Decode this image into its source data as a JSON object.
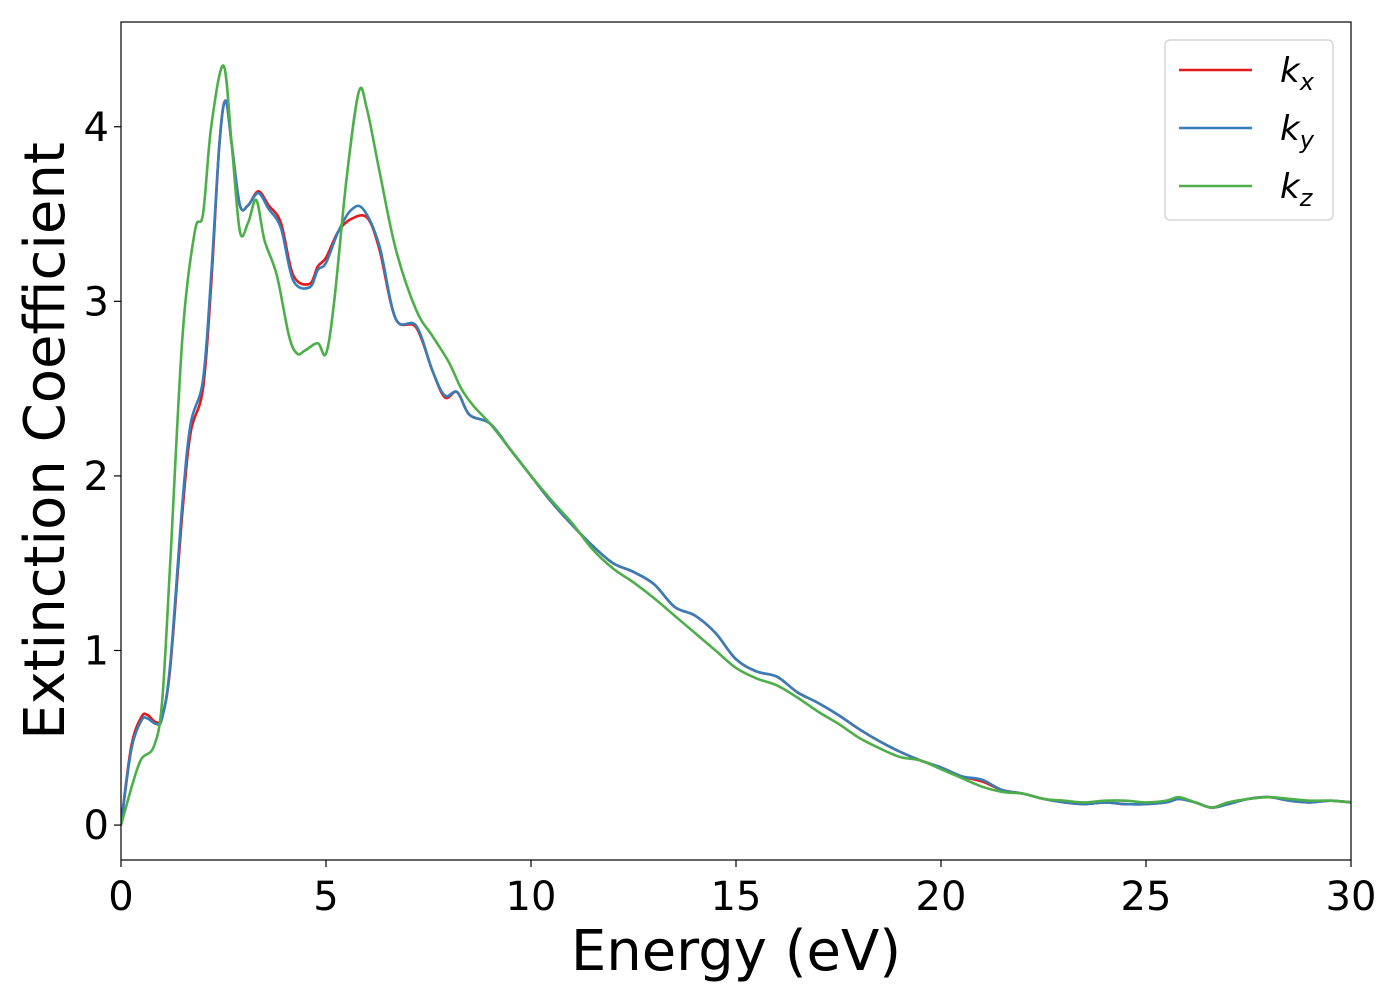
{
  "chart_data": {
    "type": "line",
    "xlabel": "Energy (eV)",
    "ylabel": "Extinction Coefficient",
    "xlim": [
      0,
      30
    ],
    "ylim": [
      -0.2,
      4.6
    ],
    "xticks": [
      0,
      5,
      10,
      15,
      20,
      25,
      30
    ],
    "xtick_labels": [
      "0",
      "5",
      "10",
      "15",
      "20",
      "25",
      "30"
    ],
    "yticks": [
      0,
      1,
      2,
      3,
      4
    ],
    "ytick_labels": [
      "0",
      "1",
      "2",
      "3",
      "4"
    ],
    "grid": false,
    "legend_position": "top-right",
    "series": [
      {
        "name": "k_x",
        "legend_main": "k",
        "legend_sub": "x",
        "color": "#e41a1c",
        "x": [
          0,
          0.25,
          0.5,
          0.65,
          0.85,
          1.0,
          1.2,
          1.5,
          1.7,
          2.0,
          2.2,
          2.4,
          2.55,
          2.7,
          2.9,
          3.1,
          3.35,
          3.6,
          3.9,
          4.2,
          4.6,
          4.8,
          5.0,
          5.3,
          5.6,
          6.0,
          6.3,
          6.7,
          7.2,
          7.6,
          7.9,
          8.2,
          8.5,
          9.0,
          9.5,
          10.0,
          10.5,
          11.0,
          11.5,
          12.0,
          12.5,
          13.0,
          13.5,
          14.0,
          14.5,
          15.0,
          15.5,
          16.0,
          16.5,
          17.0,
          17.5,
          18.0,
          18.5,
          19.0,
          19.5,
          20.0,
          20.5,
          21.0,
          21.5,
          22.0,
          22.5,
          23.0,
          23.5,
          24.0,
          24.5,
          25.0,
          25.5,
          25.8,
          26.2,
          26.6,
          27.0,
          27.5,
          28.0,
          28.5,
          29.0,
          29.5,
          30.0
        ],
        "y": [
          0.0,
          0.45,
          0.62,
          0.63,
          0.59,
          0.62,
          0.9,
          1.8,
          2.25,
          2.5,
          3.1,
          3.9,
          4.15,
          3.9,
          3.55,
          3.55,
          3.63,
          3.55,
          3.45,
          3.15,
          3.1,
          3.2,
          3.25,
          3.4,
          3.47,
          3.48,
          3.3,
          2.9,
          2.85,
          2.6,
          2.45,
          2.48,
          2.35,
          2.3,
          2.15,
          2.0,
          1.85,
          1.72,
          1.6,
          1.5,
          1.45,
          1.38,
          1.25,
          1.2,
          1.1,
          0.95,
          0.88,
          0.85,
          0.76,
          0.7,
          0.63,
          0.55,
          0.48,
          0.42,
          0.37,
          0.33,
          0.28,
          0.25,
          0.2,
          0.18,
          0.15,
          0.13,
          0.12,
          0.13,
          0.12,
          0.12,
          0.13,
          0.15,
          0.13,
          0.1,
          0.12,
          0.15,
          0.16,
          0.14,
          0.13,
          0.14,
          0.13
        ]
      },
      {
        "name": "k_y",
        "legend_main": "k",
        "legend_sub": "y",
        "color": "#377eb8",
        "x": [
          0,
          0.25,
          0.5,
          0.65,
          0.85,
          1.0,
          1.2,
          1.5,
          1.7,
          2.0,
          2.2,
          2.4,
          2.55,
          2.7,
          2.9,
          3.1,
          3.35,
          3.6,
          3.9,
          4.2,
          4.6,
          4.8,
          5.0,
          5.3,
          5.6,
          5.9,
          6.3,
          6.7,
          7.2,
          7.6,
          7.9,
          8.2,
          8.5,
          9.0,
          9.5,
          10.0,
          10.5,
          11.0,
          11.5,
          12.0,
          12.5,
          13.0,
          13.5,
          14.0,
          14.5,
          15.0,
          15.5,
          16.0,
          16.5,
          17.0,
          17.5,
          18.0,
          18.5,
          19.0,
          19.5,
          20.0,
          20.5,
          21.0,
          21.5,
          22.0,
          22.5,
          23.0,
          23.5,
          24.0,
          24.5,
          25.0,
          25.5,
          25.8,
          26.2,
          26.6,
          27.0,
          27.5,
          28.0,
          28.5,
          29.0,
          29.5,
          30.0
        ],
        "y": [
          0.0,
          0.43,
          0.6,
          0.61,
          0.58,
          0.61,
          0.92,
          1.85,
          2.3,
          2.55,
          3.15,
          3.9,
          4.15,
          3.9,
          3.55,
          3.55,
          3.62,
          3.53,
          3.42,
          3.12,
          3.08,
          3.18,
          3.22,
          3.4,
          3.52,
          3.53,
          3.32,
          2.9,
          2.86,
          2.6,
          2.46,
          2.48,
          2.35,
          2.3,
          2.15,
          2.0,
          1.85,
          1.72,
          1.6,
          1.5,
          1.45,
          1.38,
          1.25,
          1.2,
          1.1,
          0.95,
          0.88,
          0.85,
          0.76,
          0.7,
          0.63,
          0.55,
          0.48,
          0.42,
          0.37,
          0.33,
          0.28,
          0.26,
          0.2,
          0.18,
          0.15,
          0.13,
          0.12,
          0.13,
          0.12,
          0.12,
          0.13,
          0.15,
          0.13,
          0.1,
          0.12,
          0.15,
          0.16,
          0.14,
          0.13,
          0.14,
          0.13
        ]
      },
      {
        "name": "k_z",
        "legend_main": "k",
        "legend_sub": "z",
        "color": "#4daf4a",
        "x": [
          0,
          0.3,
          0.5,
          0.8,
          1.0,
          1.2,
          1.5,
          1.8,
          2.0,
          2.2,
          2.5,
          2.7,
          2.9,
          3.1,
          3.3,
          3.5,
          3.8,
          4.1,
          4.3,
          4.5,
          4.8,
          5.0,
          5.2,
          5.5,
          5.8,
          6.0,
          6.3,
          6.7,
          7.2,
          7.6,
          8.0,
          8.3,
          8.6,
          9.0,
          9.5,
          10.0,
          10.5,
          11.0,
          11.5,
          12.0,
          12.5,
          13.0,
          13.5,
          14.0,
          14.5,
          15.0,
          15.5,
          16.0,
          16.5,
          17.0,
          17.5,
          18.0,
          18.5,
          19.0,
          19.5,
          20.0,
          20.5,
          21.0,
          21.5,
          22.0,
          22.5,
          23.0,
          23.5,
          24.0,
          24.5,
          25.0,
          25.5,
          25.8,
          26.2,
          26.6,
          27.0,
          27.5,
          28.0,
          28.5,
          29.0,
          29.5,
          30.0
        ],
        "y": [
          0.0,
          0.25,
          0.38,
          0.45,
          0.7,
          1.5,
          2.8,
          3.4,
          3.5,
          4.0,
          4.35,
          3.9,
          3.4,
          3.45,
          3.58,
          3.35,
          3.15,
          2.8,
          2.7,
          2.72,
          2.76,
          2.7,
          3.0,
          3.7,
          4.2,
          4.1,
          3.75,
          3.3,
          2.95,
          2.8,
          2.65,
          2.5,
          2.4,
          2.3,
          2.15,
          2.0,
          1.86,
          1.73,
          1.58,
          1.47,
          1.39,
          1.3,
          1.2,
          1.1,
          1.0,
          0.9,
          0.84,
          0.8,
          0.73,
          0.65,
          0.58,
          0.5,
          0.44,
          0.39,
          0.37,
          0.32,
          0.27,
          0.22,
          0.19,
          0.18,
          0.15,
          0.14,
          0.13,
          0.14,
          0.14,
          0.13,
          0.14,
          0.16,
          0.13,
          0.1,
          0.13,
          0.15,
          0.16,
          0.15,
          0.14,
          0.14,
          0.13
        ]
      }
    ]
  }
}
